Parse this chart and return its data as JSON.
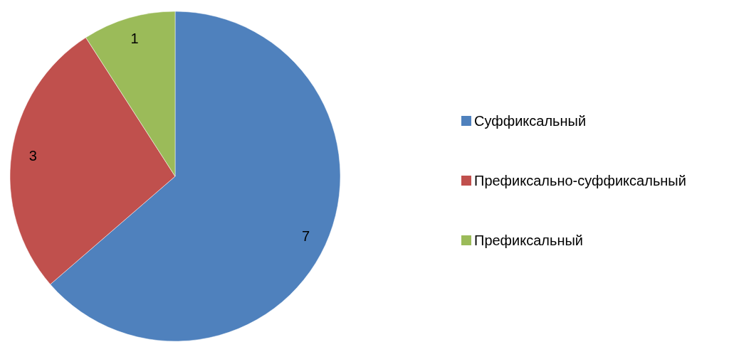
{
  "chart_data": {
    "type": "pie",
    "categories": [
      "Суффиксальный",
      "Префиксально-суффиксальный",
      "Префиксальный"
    ],
    "values": [
      7,
      3,
      1
    ],
    "colors": [
      "#4f81bd",
      "#c0504d",
      "#9bbb59"
    ],
    "data_labels": true,
    "legend": "right"
  }
}
